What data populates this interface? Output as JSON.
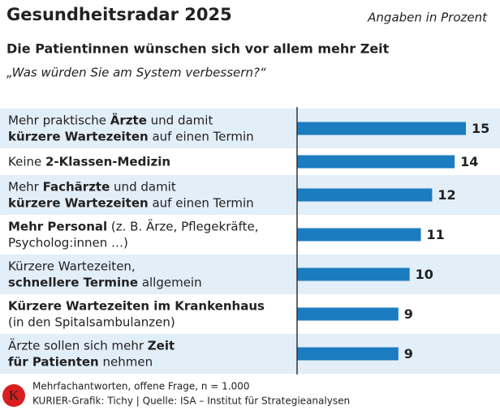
{
  "header": {
    "title": "Gesundheitsradar 2025",
    "note": "Angaben in Prozent",
    "subtitle": "Die Patientinnen wünschen sich vor allem mehr Zeit",
    "question": "„Was würden Sie am System verbessern?“"
  },
  "chart_data": {
    "type": "bar",
    "orientation": "horizontal",
    "color": "#1b7cc0",
    "row_color": "#e2eef8",
    "categories": [
      [
        [
          {
            "text": "Mehr praktische ",
            "bold": false
          },
          {
            "text": "Ärzte",
            "bold": true
          },
          {
            "text": " und damit",
            "bold": false
          }
        ],
        [
          {
            "text": "kürzere Wartezeiten",
            "bold": true
          },
          {
            "text": " auf einen Termin",
            "bold": false
          }
        ]
      ],
      [
        [
          {
            "text": "Keine ",
            "bold": false
          },
          {
            "text": "2-Klassen-Medizin",
            "bold": true
          }
        ]
      ],
      [
        [
          {
            "text": "Mehr ",
            "bold": false
          },
          {
            "text": "Fachärzte",
            "bold": true
          },
          {
            "text": " und damit",
            "bold": false
          }
        ],
        [
          {
            "text": "kürzere Wartezeiten",
            "bold": true
          },
          {
            "text": " auf einen Termin",
            "bold": false
          }
        ]
      ],
      [
        [
          {
            "text": "Mehr Personal",
            "bold": true
          },
          {
            "text": " (z. B. Ärze, Pflegekräfte,",
            "bold": false
          }
        ],
        [
          {
            "text": "Psycholog:innen …)",
            "bold": false
          }
        ]
      ],
      [
        [
          {
            "text": "Kürzere Wartezeiten,",
            "bold": false
          }
        ],
        [
          {
            "text": "schnellere Termine",
            "bold": true
          },
          {
            "text": " allgemein",
            "bold": false
          }
        ]
      ],
      [
        [
          {
            "text": "Kürzere Wartezeiten im Krankenhaus",
            "bold": true
          }
        ],
        [
          {
            "text": "(in den Spitalsambulanzen)",
            "bold": false
          }
        ]
      ],
      [
        [
          {
            "text": "Ärzte sollen sich mehr ",
            "bold": false
          },
          {
            "text": "Zeit",
            "bold": true
          }
        ],
        [
          {
            "text": "für Patienten",
            "bold": true
          },
          {
            "text": " nehmen",
            "bold": false
          }
        ]
      ]
    ],
    "values": [
      15,
      14,
      12,
      11,
      10,
      9,
      9
    ]
  },
  "footer": {
    "logo": "K",
    "note": "Mehrfachantworten, offene Frage, n = 1.000",
    "source": "KURIER-Grafik: Tichy | Quelle: ISA – Institut für Strategieanalysen"
  }
}
